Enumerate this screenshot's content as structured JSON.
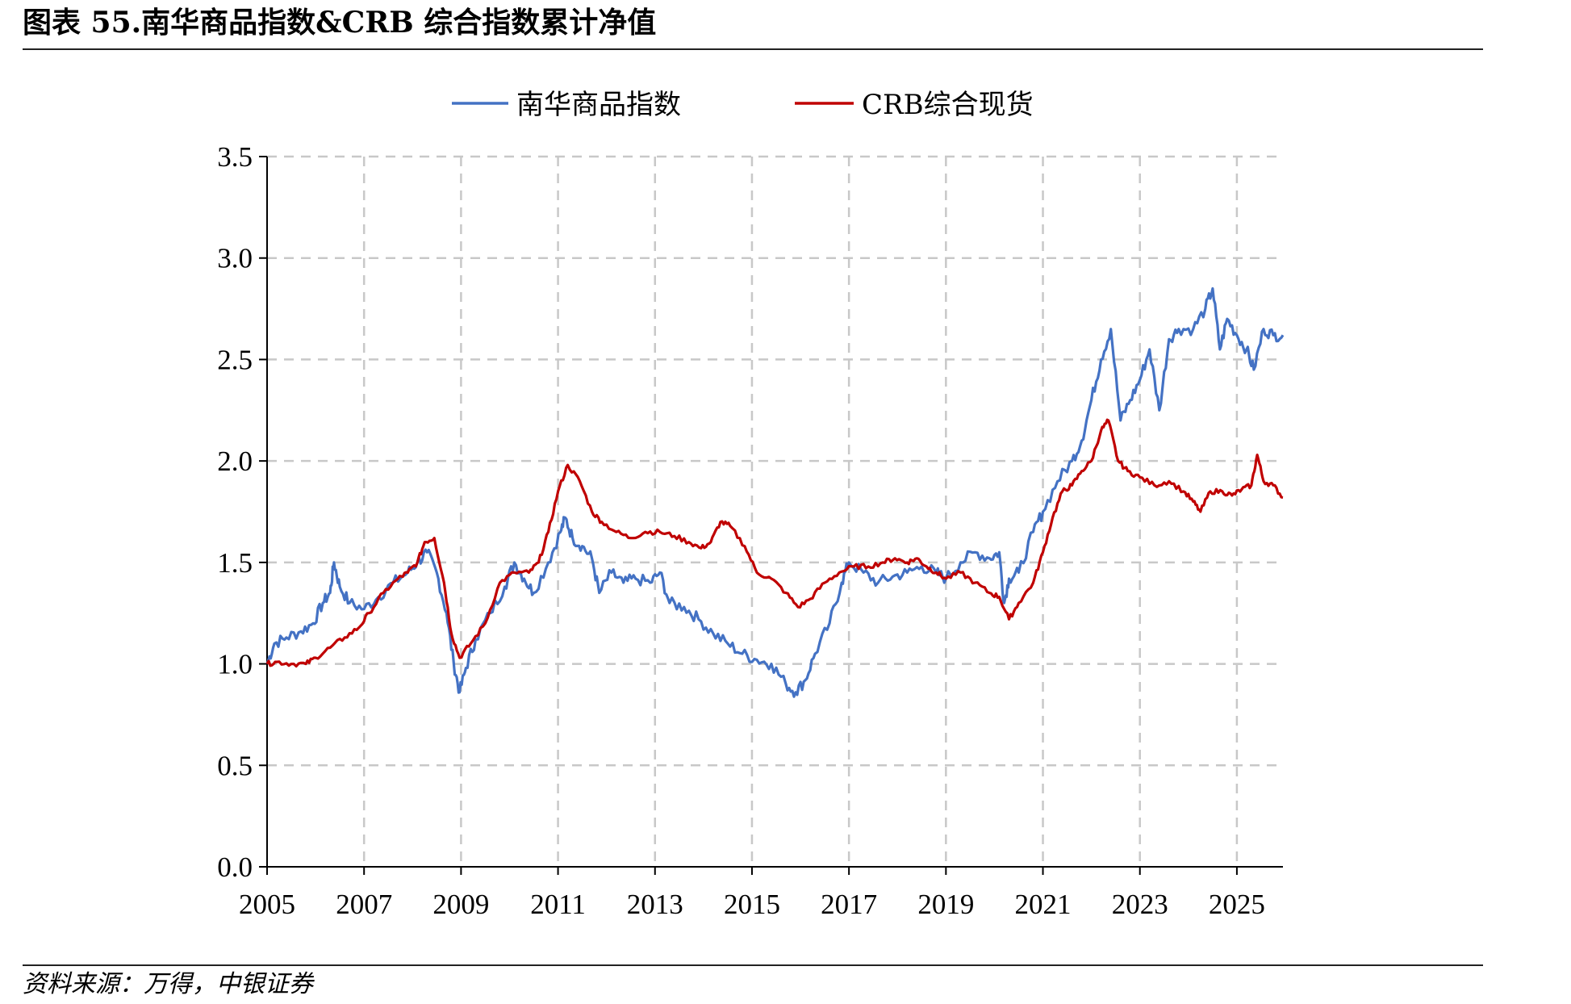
{
  "header": {
    "title": "图表 55.南华商品指数&CRB 综合指数累计净值"
  },
  "footer": {
    "source": "资料来源：万得，中银证券"
  },
  "chart_data": {
    "type": "line",
    "title": "图表 55.南华商品指数&CRB 综合指数累计净值",
    "xlabel": "",
    "ylabel": "",
    "xlim": [
      2005,
      2025.95
    ],
    "ylim": [
      0,
      3.5
    ],
    "x_ticks": [
      "2005",
      "2007",
      "2009",
      "2011",
      "2013",
      "2015",
      "2017",
      "2019",
      "2021",
      "2023",
      "2025"
    ],
    "y_ticks": [
      "0.0",
      "0.5",
      "1.0",
      "1.5",
      "2.0",
      "2.5",
      "3.0",
      "3.5"
    ],
    "grid": true,
    "legend": "top-center",
    "series": [
      {
        "name": "南华商品指数",
        "color": "#4472C4",
        "points": [
          [
            2005.0,
            1.0
          ],
          [
            2005.15,
            1.1
          ],
          [
            2005.4,
            1.13
          ],
          [
            2005.7,
            1.16
          ],
          [
            2005.95,
            1.2
          ],
          [
            2006.15,
            1.3
          ],
          [
            2006.3,
            1.35
          ],
          [
            2006.38,
            1.5
          ],
          [
            2006.5,
            1.38
          ],
          [
            2006.7,
            1.3
          ],
          [
            2007.0,
            1.27
          ],
          [
            2007.3,
            1.33
          ],
          [
            2007.6,
            1.4
          ],
          [
            2007.9,
            1.45
          ],
          [
            2008.1,
            1.5
          ],
          [
            2008.3,
            1.55
          ],
          [
            2008.5,
            1.45
          ],
          [
            2008.7,
            1.25
          ],
          [
            2008.85,
            1.0
          ],
          [
            2008.97,
            0.86
          ],
          [
            2009.1,
            0.98
          ],
          [
            2009.3,
            1.12
          ],
          [
            2009.6,
            1.25
          ],
          [
            2009.9,
            1.38
          ],
          [
            2010.1,
            1.5
          ],
          [
            2010.3,
            1.42
          ],
          [
            2010.5,
            1.35
          ],
          [
            2010.8,
            1.5
          ],
          [
            2011.05,
            1.65
          ],
          [
            2011.15,
            1.72
          ],
          [
            2011.3,
            1.62
          ],
          [
            2011.5,
            1.58
          ],
          [
            2011.7,
            1.52
          ],
          [
            2011.85,
            1.35
          ],
          [
            2012.1,
            1.45
          ],
          [
            2012.35,
            1.4
          ],
          [
            2012.6,
            1.42
          ],
          [
            2012.9,
            1.4
          ],
          [
            2013.1,
            1.45
          ],
          [
            2013.3,
            1.3
          ],
          [
            2013.6,
            1.28
          ],
          [
            2013.9,
            1.22
          ],
          [
            2014.2,
            1.15
          ],
          [
            2014.5,
            1.1
          ],
          [
            2014.8,
            1.05
          ],
          [
            2015.1,
            1.02
          ],
          [
            2015.4,
            1.0
          ],
          [
            2015.7,
            0.9
          ],
          [
            2015.9,
            0.86
          ],
          [
            2016.1,
            0.92
          ],
          [
            2016.3,
            1.05
          ],
          [
            2016.6,
            1.2
          ],
          [
            2016.85,
            1.4
          ],
          [
            2017.0,
            1.5
          ],
          [
            2017.3,
            1.45
          ],
          [
            2017.6,
            1.4
          ],
          [
            2017.9,
            1.43
          ],
          [
            2018.2,
            1.45
          ],
          [
            2018.5,
            1.48
          ],
          [
            2018.8,
            1.45
          ],
          [
            2019.0,
            1.42
          ],
          [
            2019.3,
            1.5
          ],
          [
            2019.6,
            1.55
          ],
          [
            2019.9,
            1.52
          ],
          [
            2020.1,
            1.55
          ],
          [
            2020.2,
            1.3
          ],
          [
            2020.3,
            1.42
          ],
          [
            2020.5,
            1.45
          ],
          [
            2020.8,
            1.65
          ],
          [
            2021.0,
            1.75
          ],
          [
            2021.3,
            1.9
          ],
          [
            2021.6,
            2.0
          ],
          [
            2021.8,
            2.1
          ],
          [
            2022.0,
            2.3
          ],
          [
            2022.2,
            2.5
          ],
          [
            2022.4,
            2.65
          ],
          [
            2022.6,
            2.2
          ],
          [
            2022.8,
            2.3
          ],
          [
            2023.0,
            2.4
          ],
          [
            2023.2,
            2.55
          ],
          [
            2023.4,
            2.25
          ],
          [
            2023.6,
            2.6
          ],
          [
            2023.8,
            2.65
          ],
          [
            2024.1,
            2.65
          ],
          [
            2024.35,
            2.75
          ],
          [
            2024.5,
            2.85
          ],
          [
            2024.65,
            2.55
          ],
          [
            2024.8,
            2.7
          ],
          [
            2025.0,
            2.62
          ],
          [
            2025.2,
            2.55
          ],
          [
            2025.35,
            2.45
          ],
          [
            2025.55,
            2.65
          ],
          [
            2025.75,
            2.62
          ],
          [
            2025.95,
            2.62
          ]
        ]
      },
      {
        "name": "CRB综合现货",
        "color": "#C00000",
        "points": [
          [
            2005.0,
            1.0
          ],
          [
            2005.2,
            1.01
          ],
          [
            2005.5,
            1.0
          ],
          [
            2005.8,
            1.0
          ],
          [
            2006.0,
            1.03
          ],
          [
            2006.3,
            1.08
          ],
          [
            2006.6,
            1.13
          ],
          [
            2006.9,
            1.18
          ],
          [
            2007.1,
            1.25
          ],
          [
            2007.4,
            1.35
          ],
          [
            2007.7,
            1.42
          ],
          [
            2007.9,
            1.45
          ],
          [
            2008.1,
            1.5
          ],
          [
            2008.25,
            1.6
          ],
          [
            2008.45,
            1.62
          ],
          [
            2008.65,
            1.4
          ],
          [
            2008.8,
            1.15
          ],
          [
            2008.97,
            1.03
          ],
          [
            2009.2,
            1.1
          ],
          [
            2009.5,
            1.2
          ],
          [
            2009.8,
            1.4
          ],
          [
            2010.1,
            1.45
          ],
          [
            2010.4,
            1.45
          ],
          [
            2010.6,
            1.5
          ],
          [
            2010.8,
            1.65
          ],
          [
            2011.0,
            1.85
          ],
          [
            2011.2,
            1.98
          ],
          [
            2011.45,
            1.9
          ],
          [
            2011.7,
            1.75
          ],
          [
            2011.9,
            1.7
          ],
          [
            2012.2,
            1.65
          ],
          [
            2012.5,
            1.62
          ],
          [
            2012.8,
            1.65
          ],
          [
            2013.1,
            1.65
          ],
          [
            2013.4,
            1.63
          ],
          [
            2013.7,
            1.6
          ],
          [
            2013.95,
            1.57
          ],
          [
            2014.15,
            1.6
          ],
          [
            2014.35,
            1.7
          ],
          [
            2014.55,
            1.68
          ],
          [
            2014.85,
            1.58
          ],
          [
            2015.1,
            1.45
          ],
          [
            2015.4,
            1.42
          ],
          [
            2015.7,
            1.35
          ],
          [
            2015.95,
            1.28
          ],
          [
            2016.2,
            1.32
          ],
          [
            2016.5,
            1.4
          ],
          [
            2016.8,
            1.45
          ],
          [
            2017.1,
            1.48
          ],
          [
            2017.4,
            1.48
          ],
          [
            2017.7,
            1.5
          ],
          [
            2017.95,
            1.52
          ],
          [
            2018.2,
            1.5
          ],
          [
            2018.4,
            1.52
          ],
          [
            2018.6,
            1.48
          ],
          [
            2018.8,
            1.45
          ],
          [
            2019.0,
            1.42
          ],
          [
            2019.3,
            1.45
          ],
          [
            2019.6,
            1.4
          ],
          [
            2019.9,
            1.35
          ],
          [
            2020.1,
            1.33
          ],
          [
            2020.3,
            1.22
          ],
          [
            2020.5,
            1.3
          ],
          [
            2020.8,
            1.4
          ],
          [
            2021.0,
            1.55
          ],
          [
            2021.2,
            1.72
          ],
          [
            2021.4,
            1.85
          ],
          [
            2021.6,
            1.88
          ],
          [
            2021.8,
            1.95
          ],
          [
            2022.0,
            2.0
          ],
          [
            2022.2,
            2.15
          ],
          [
            2022.35,
            2.2
          ],
          [
            2022.55,
            2.0
          ],
          [
            2022.75,
            1.95
          ],
          [
            2023.0,
            1.92
          ],
          [
            2023.3,
            1.88
          ],
          [
            2023.6,
            1.9
          ],
          [
            2023.9,
            1.85
          ],
          [
            2024.1,
            1.8
          ],
          [
            2024.25,
            1.75
          ],
          [
            2024.45,
            1.85
          ],
          [
            2024.7,
            1.85
          ],
          [
            2024.9,
            1.83
          ],
          [
            2025.1,
            1.86
          ],
          [
            2025.3,
            1.88
          ],
          [
            2025.42,
            2.03
          ],
          [
            2025.55,
            1.9
          ],
          [
            2025.75,
            1.88
          ],
          [
            2025.95,
            1.82
          ]
        ]
      }
    ]
  }
}
